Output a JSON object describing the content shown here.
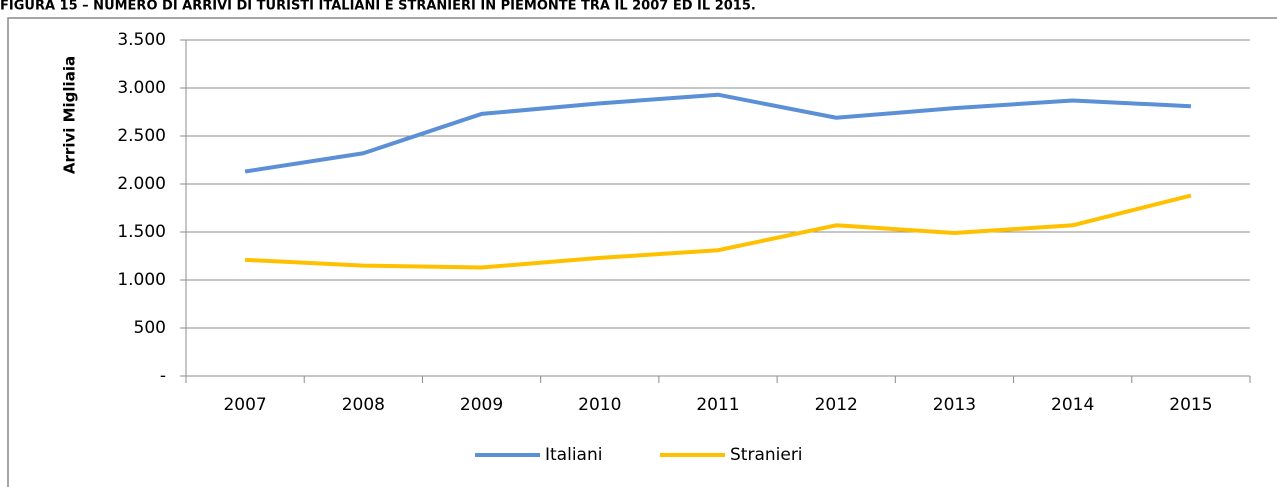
{
  "chart_data": {
    "type": "line",
    "title": "FIGURA 15 – NUMERO DI ARRIVI DI TURISTI ITALIANI E STRANIERI IN PIEMONTE TRA IL 2007 ED IL 2015.",
    "y_label": "Arrivi Migliaia",
    "categories": [
      "2007",
      "2008",
      "2009",
      "2010",
      "2011",
      "2012",
      "2013",
      "2014",
      "2015"
    ],
    "series": [
      {
        "name": "Italiani",
        "color": "#5b8fd6",
        "values": [
          2130,
          2320,
          2730,
          2840,
          2930,
          2690,
          2790,
          2870,
          2810
        ]
      },
      {
        "name": "Stranieri",
        "color": "#ffc000",
        "values": [
          1210,
          1150,
          1130,
          1230,
          1310,
          1570,
          1490,
          1570,
          1880
        ]
      }
    ],
    "ylim": [
      0,
      3500
    ],
    "yticks": [
      {
        "value": 0,
        "label": "-"
      },
      500,
      {
        "value": 1000,
        "label": "1.000"
      },
      {
        "value": 1500,
        "label": "1.500"
      },
      {
        "value": 2000,
        "label": "2.000"
      },
      {
        "value": 2500,
        "label": "2.500"
      },
      {
        "value": 3000,
        "label": "3.000"
      },
      {
        "value": 3500,
        "label": "3.500"
      }
    ],
    "grid": true,
    "legend": "bottom"
  }
}
